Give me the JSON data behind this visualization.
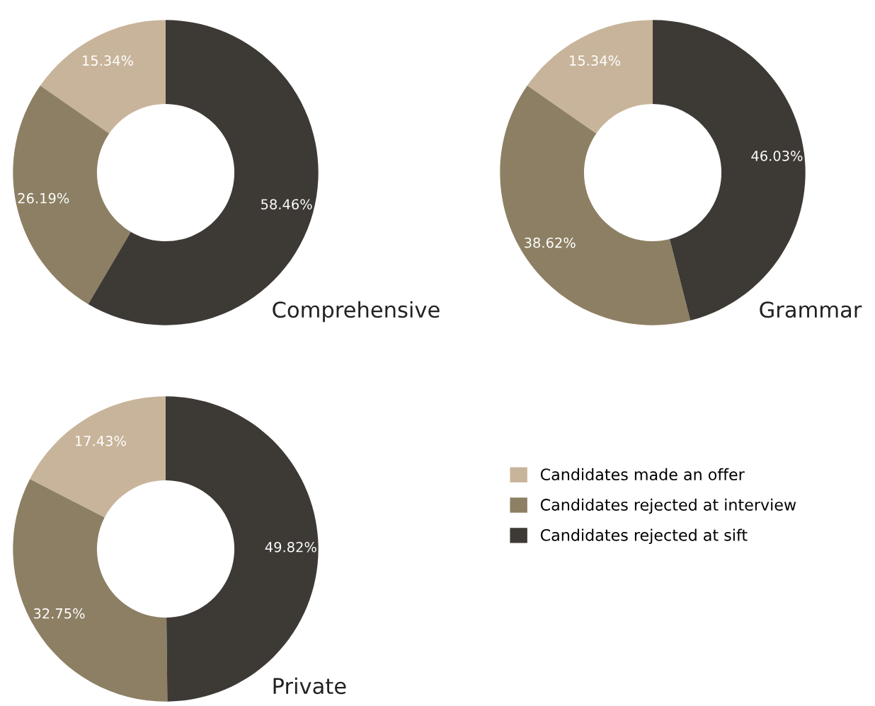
{
  "chart_data": [
    {
      "type": "donut",
      "title": "Comprehensive",
      "categories": [
        "Candidates made an offer",
        "Candidates rejected at interview",
        "Candidates rejected at sift"
      ],
      "values": [
        15.34,
        26.19,
        58.46
      ],
      "value_labels": [
        "15.34%",
        "26.19%",
        "58.46%"
      ],
      "colors": [
        "#c8b49a",
        "#8c7f63",
        "#3d3935"
      ],
      "legend": "bottom right"
    },
    {
      "type": "donut",
      "title": "Grammar",
      "categories": [
        null,
        null,
        null
      ],
      "values": [
        15.34,
        38.62,
        46.03
      ],
      "value_labels": [
        "15.34%",
        "38.62%",
        "46.03%"
      ],
      "colors": [
        "#c8b49a",
        "#8c7f63",
        "#3d3935"
      ],
      "legend": false
    },
    {
      "type": "donut",
      "title": "Private",
      "categories": [
        null,
        null,
        null
      ],
      "values": [
        17.43,
        32.75,
        49.82
      ],
      "value_labels": [
        "17.43%",
        "32.75%",
        "49.82%"
      ],
      "colors": [
        "#c8b49a",
        "#8c7f63",
        "#3d3935"
      ],
      "legend": false
    }
  ]
}
